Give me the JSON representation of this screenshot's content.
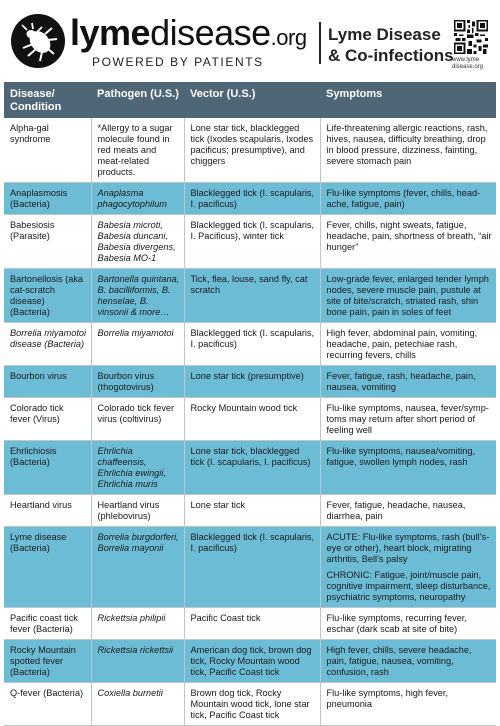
{
  "brand": {
    "name_bold": "lyme",
    "name_regular": "disease",
    "name_suffix": ".org",
    "tagline": "POWERED BY PATIENTS",
    "qr_caption": "www.lyme disease.org",
    "colors": {
      "header_bg": "#4f6676",
      "accent_row": "#6dbcd6",
      "logo": "#111111"
    }
  },
  "title": {
    "line1": "Lyme Disease",
    "line2": "& Co-infections"
  },
  "table": {
    "headers": [
      "Disease/ Condition",
      "Pathogen (U.S.)",
      "Vector (U.S.)",
      "Symptoms"
    ],
    "rows": [
      {
        "disease": "Alpha-gal syndrome",
        "pathogen": "*Allergy to a sugar molecule found in red meats and meat-related products.",
        "pathogen_italic": false,
        "vector": "Lone star tick, blacklegged tick (Ixodes scapularis, Ixodes pacificus; presumptive), and chiggers",
        "symptoms": [
          "Life-threatening allergic reactions, rash, hives, nausea, difficulty breathing, drop in blood pressure, dizziness, fainting, severe stomach pain"
        ]
      },
      {
        "disease": "Anaplasmosis (Bacteria)",
        "pathogen": "Anaplasma phagocytophilum",
        "pathogen_italic": true,
        "vector": "Blacklegged tick (I. scapularis, I. pacificus)",
        "symptoms": [
          "Flu-like symptoms (fever, chills, head-ache, fatigue, pain)"
        ]
      },
      {
        "disease": "Babesiosis (Parasite)",
        "pathogen": "Babesia microti, Babesia duncani, Babesia divergens, Babesia MO-1",
        "pathogen_italic": true,
        "vector": "Blacklegged tick (I. scapularis, I. Pacificus), winter tick",
        "symptoms": [
          "Fever, chills, night sweats, fatigue, headache, pain, shortness of breath, “air hunger”"
        ]
      },
      {
        "disease": "Bartonellosis (aka cat-scratch disease) (Bacteria)",
        "pathogen": "Bartonella quintana, B. bacilliformis, B. henselae, B. vinsonii & more…",
        "pathogen_italic": true,
        "vector": "Tick, flea, louse, sand fly, cat scratch",
        "symptoms": [
          "Low-grade fever, enlarged tender lymph nodes, severe muscle pain, pustule at site of bite/scratch, striated rash, shin bone pain, pain in soles of feet"
        ]
      },
      {
        "disease": "Borrelia miyamotoi disease (Bacteria)",
        "pathogen": "Borrelia miyamotoi",
        "pathogen_italic": true,
        "vector": "Blacklegged tick (I. scapularis, I. pacificus)",
        "symptoms": [
          "High fever, abdominal pain, vomiting, headache, pain, petechiae rash, recurring fevers, chills"
        ]
      },
      {
        "disease": "Bourbon virus",
        "pathogen": "Bourbon virus (thogotovirus)",
        "pathogen_italic": false,
        "vector": "Lone star tick (presumptive)",
        "symptoms": [
          "Fever, fatigue, rash, headache, pain, nausea, vomiting"
        ]
      },
      {
        "disease": "Colorado tick fever (Virus)",
        "pathogen": "Colorado tick fever virus (coltivirus)",
        "pathogen_italic": false,
        "vector": "Rocky Mountain wood tick",
        "symptoms": [
          "Flu-like symptoms, nausea, fever/symp-toms may return after short period of feeling well"
        ]
      },
      {
        "disease": "Ehrlichiosis (Bacteria)",
        "pathogen": "Ehrlichia chaffeensis, Ehrlichia ewingii, Ehrlichia muris",
        "pathogen_italic": true,
        "vector": "Lone star tick, blacklegged tick (I. scapularis, I. pacificus)",
        "symptoms": [
          "Flu-like symptoms, nausea/vomiting, fatigue, swollen lymph nodes, rash"
        ]
      },
      {
        "disease": "Heartland virus",
        "pathogen": "Heartland virus (phlebovirus)",
        "pathogen_italic": false,
        "vector": "Lone star tick",
        "symptoms": [
          "Fever, fatigue, headache, nausea, diarrhea, pain"
        ]
      },
      {
        "disease": "Lyme disease (Bacteria)",
        "pathogen": "Borrelia burgdorferi, Borrelia mayonii",
        "pathogen_italic": true,
        "vector": "Blacklegged tick (I. scapularis, I. pacificus)",
        "symptoms": [
          "ACUTE: Flu-like symptoms, rash (bull’s-eye or other), heart block, migrating arthritis, Bell’s palsy",
          "CHRONIC: Fatigue, joint/muscle pain, cognitive impairment, sleep disturbance, psychiatric symptoms, neuropathy"
        ]
      },
      {
        "disease": "Pacific coast tick fever (Bacteria)",
        "pathogen": "Rickettsia philipii",
        "pathogen_italic": true,
        "vector": "Pacific Coast tick",
        "symptoms": [
          "Flu-like symptoms, recurring fever, eschar (dark scab at site of bite)"
        ]
      },
      {
        "disease": "Rocky Mountain spotted fever (Bacteria)",
        "pathogen": "Rickettsia rickettsii",
        "pathogen_italic": true,
        "vector": "American dog tick, brown dog tick, Rocky Mountain wood tick, Pacific Coast tick",
        "symptoms": [
          "High fever, chills, severe headache, pain, fatigue, nausea, vomiting, confusion, rash"
        ]
      },
      {
        "disease": "Q-fever (Bacteria)",
        "pathogen": "Coxiella burnetii",
        "pathogen_italic": true,
        "vector": "Brown dog tick, Rocky Mountain wood tick, lone star tick, Pacific Coast tick",
        "symptoms": [
          "Flu-like symptoms, high fever, pneumonia"
        ]
      }
    ]
  }
}
